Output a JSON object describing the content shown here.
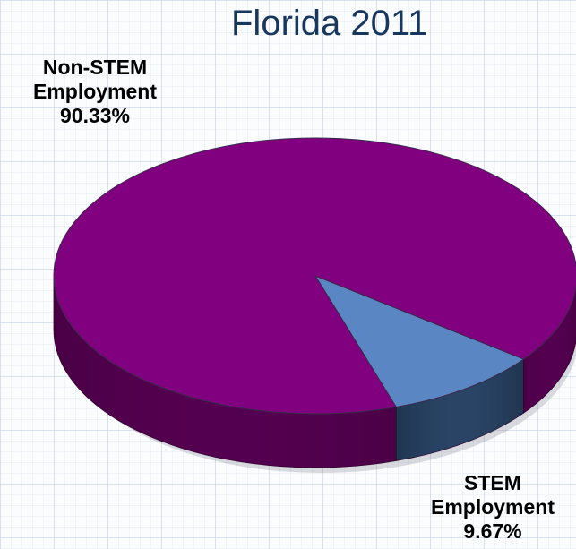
{
  "chart_data": {
    "type": "pie",
    "title": "Florida 2011",
    "slices": [
      {
        "label_line1": "Non-STEM",
        "label_line2": "Employment",
        "pct_text": "90.33%",
        "value": 90.33,
        "color": "#800080",
        "side_color": "#4a0045"
      },
      {
        "label_line1": "STEM",
        "label_line2": "Employment",
        "pct_text": "9.67%",
        "value": 9.67,
        "color": "#5b86c4",
        "side_color": "#1f3550"
      }
    ],
    "style": "3d",
    "legend": "none"
  }
}
